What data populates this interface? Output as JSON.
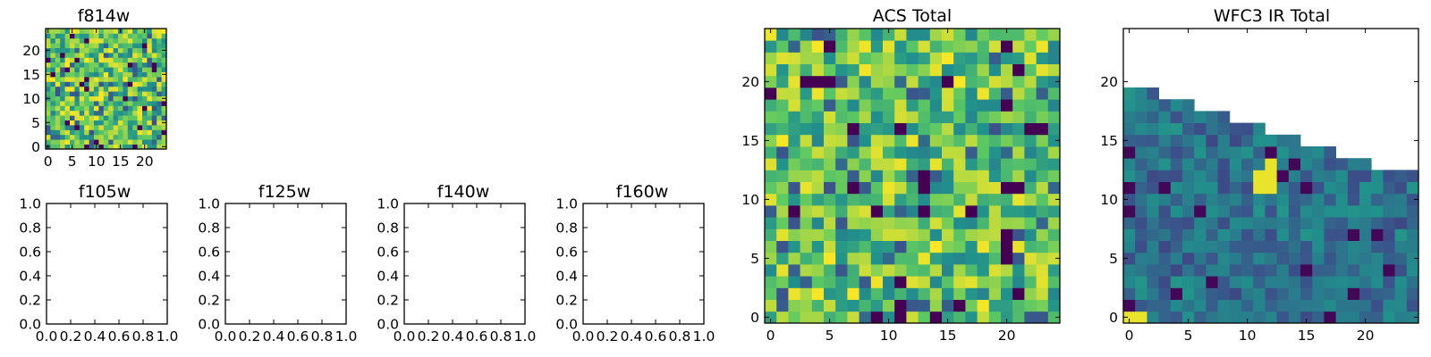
{
  "colormap": {
    "name": "viridis",
    "stops": [
      "#440154",
      "#3b528b",
      "#21918c",
      "#5ec962",
      "#fde725"
    ]
  },
  "chart_data": [
    {
      "type": "heatmap",
      "title": "f814w",
      "grid_size": 25,
      "xlim": [
        -0.5,
        24.5
      ],
      "ylim": [
        -0.5,
        24.5
      ],
      "xticks": [
        0,
        5,
        10,
        15,
        20
      ],
      "yticks": [
        0,
        5,
        10,
        15,
        20
      ],
      "xtick_labels": [
        "0",
        "5",
        "10",
        "15",
        "20"
      ],
      "ytick_labels": [
        "0",
        "5",
        "10",
        "15",
        "20"
      ],
      "value_range": [
        0,
        1
      ],
      "seed": 11,
      "value_profile": "bright",
      "coverage": "full"
    },
    {
      "type": "heatmap",
      "title": "f105w",
      "empty": true,
      "xlim": [
        0,
        1
      ],
      "ylim": [
        0,
        1
      ],
      "xticks": [
        0,
        0.2,
        0.4,
        0.6,
        0.8,
        1.0
      ],
      "yticks": [
        0,
        0.2,
        0.4,
        0.6,
        0.8,
        1.0
      ],
      "xtick_labels": [
        "0.0",
        "0.2",
        "0.4",
        "0.6",
        "0.8",
        "1.0"
      ],
      "ytick_labels": [
        "0.0",
        "0.2",
        "0.4",
        "0.6",
        "0.8",
        "1.0"
      ]
    },
    {
      "type": "heatmap",
      "title": "f125w",
      "empty": true,
      "xlim": [
        0,
        1
      ],
      "ylim": [
        0,
        1
      ],
      "xticks": [
        0,
        0.2,
        0.4,
        0.6,
        0.8,
        1.0
      ],
      "yticks": [
        0,
        0.2,
        0.4,
        0.6,
        0.8,
        1.0
      ],
      "xtick_labels": [
        "0.0",
        "0.2",
        "0.4",
        "0.6",
        "0.8",
        "1.0"
      ],
      "ytick_labels": [
        "0.0",
        "0.2",
        "0.4",
        "0.6",
        "0.8",
        "1.0"
      ]
    },
    {
      "type": "heatmap",
      "title": "f140w",
      "empty": true,
      "xlim": [
        0,
        1
      ],
      "ylim": [
        0,
        1
      ],
      "xticks": [
        0,
        0.2,
        0.4,
        0.6,
        0.8,
        1.0
      ],
      "yticks": [
        0,
        0.2,
        0.4,
        0.6,
        0.8,
        1.0
      ],
      "xtick_labels": [
        "0.0",
        "0.2",
        "0.4",
        "0.6",
        "0.8",
        "1.0"
      ],
      "ytick_labels": [
        "0.0",
        "0.2",
        "0.4",
        "0.6",
        "0.8",
        "1.0"
      ]
    },
    {
      "type": "heatmap",
      "title": "f160w",
      "empty": true,
      "xlim": [
        0,
        1
      ],
      "ylim": [
        0,
        1
      ],
      "xticks": [
        0,
        0.2,
        0.4,
        0.6,
        0.8,
        1.0
      ],
      "yticks": [
        0,
        0.2,
        0.4,
        0.6,
        0.8,
        1.0
      ],
      "xtick_labels": [
        "0.0",
        "0.2",
        "0.4",
        "0.6",
        "0.8",
        "1.0"
      ],
      "ytick_labels": [
        "0.0",
        "0.2",
        "0.4",
        "0.6",
        "0.8",
        "1.0"
      ]
    },
    {
      "type": "heatmap",
      "title": "ACS Total",
      "grid_size": 25,
      "xlim": [
        -0.5,
        24.5
      ],
      "ylim": [
        -0.5,
        24.5
      ],
      "xticks": [
        0,
        5,
        10,
        15,
        20
      ],
      "yticks": [
        0,
        5,
        10,
        15,
        20
      ],
      "xtick_labels": [
        "0",
        "5",
        "10",
        "15",
        "20"
      ],
      "ytick_labels": [
        "0",
        "5",
        "10",
        "15",
        "20"
      ],
      "value_range": [
        0,
        1
      ],
      "seed": 29,
      "value_profile": "bright",
      "coverage": "full"
    },
    {
      "type": "heatmap",
      "title": "WFC3 IR Total",
      "grid_size": 25,
      "xlim": [
        -0.5,
        24.5
      ],
      "ylim": [
        -0.5,
        24.5
      ],
      "xticks": [
        0,
        5,
        10,
        15,
        20
      ],
      "yticks": [
        0,
        5,
        10,
        15,
        20
      ],
      "xtick_labels": [
        "0",
        "5",
        "10",
        "15",
        "20"
      ],
      "ytick_labels": [
        "0",
        "5",
        "10",
        "15",
        "20"
      ],
      "value_range": [
        0,
        1
      ],
      "seed": 47,
      "value_profile": "dark",
      "coverage": "staircase",
      "column_top_rows": [
        19,
        19,
        19,
        18,
        18,
        18,
        17,
        17,
        17,
        16,
        16,
        16,
        15,
        15,
        15,
        14,
        14,
        14,
        13,
        13,
        13,
        12,
        12,
        12,
        12
      ],
      "bright_cells": [
        [
          0,
          0
        ],
        [
          1,
          0
        ],
        [
          11,
          12
        ],
        [
          12,
          12
        ],
        [
          11,
          11
        ],
        [
          12,
          13
        ],
        [
          12,
          11
        ]
      ]
    }
  ]
}
